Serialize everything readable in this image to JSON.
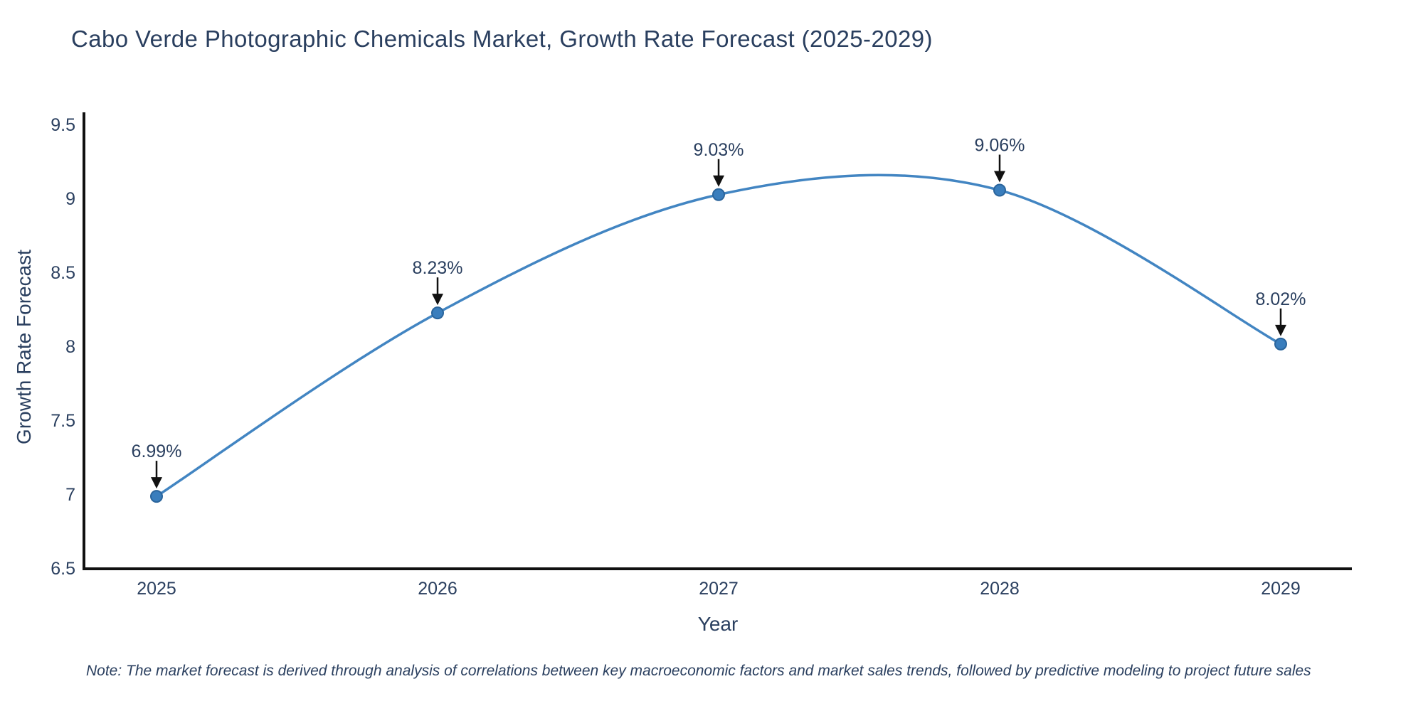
{
  "footnote": "Note: The market forecast is derived through analysis of correlations between key macroeconomic factors and market sales trends, followed by predictive modeling to project future sales",
  "chart_data": {
    "type": "line",
    "title": "Cabo Verde Photographic Chemicals Market, Growth Rate Forecast (2025-2029)",
    "xlabel": "Year",
    "ylabel": "Growth Rate Forecast",
    "x": [
      2025,
      2026,
      2027,
      2028,
      2029
    ],
    "series": [
      {
        "name": "Growth Rate Forecast",
        "values": [
          6.99,
          8.23,
          9.03,
          9.06,
          8.02
        ]
      }
    ],
    "point_labels": [
      "6.99%",
      "8.23%",
      "9.03%",
      "9.06%",
      "8.02%"
    ],
    "ylim": [
      6.5,
      9.5
    ],
    "yticks": [
      6.5,
      7,
      7.5,
      8,
      8.5,
      9,
      9.5
    ],
    "line_shape": "spline",
    "grid": false,
    "legend": "none",
    "colors": {
      "line": "#4285c2",
      "marker_fill": "#3a7ebd",
      "marker_edge": "#2b659c",
      "text": "#2a3f5f",
      "axis_line": "#111111",
      "arrow": "#111111",
      "background": "#ffffff"
    }
  }
}
